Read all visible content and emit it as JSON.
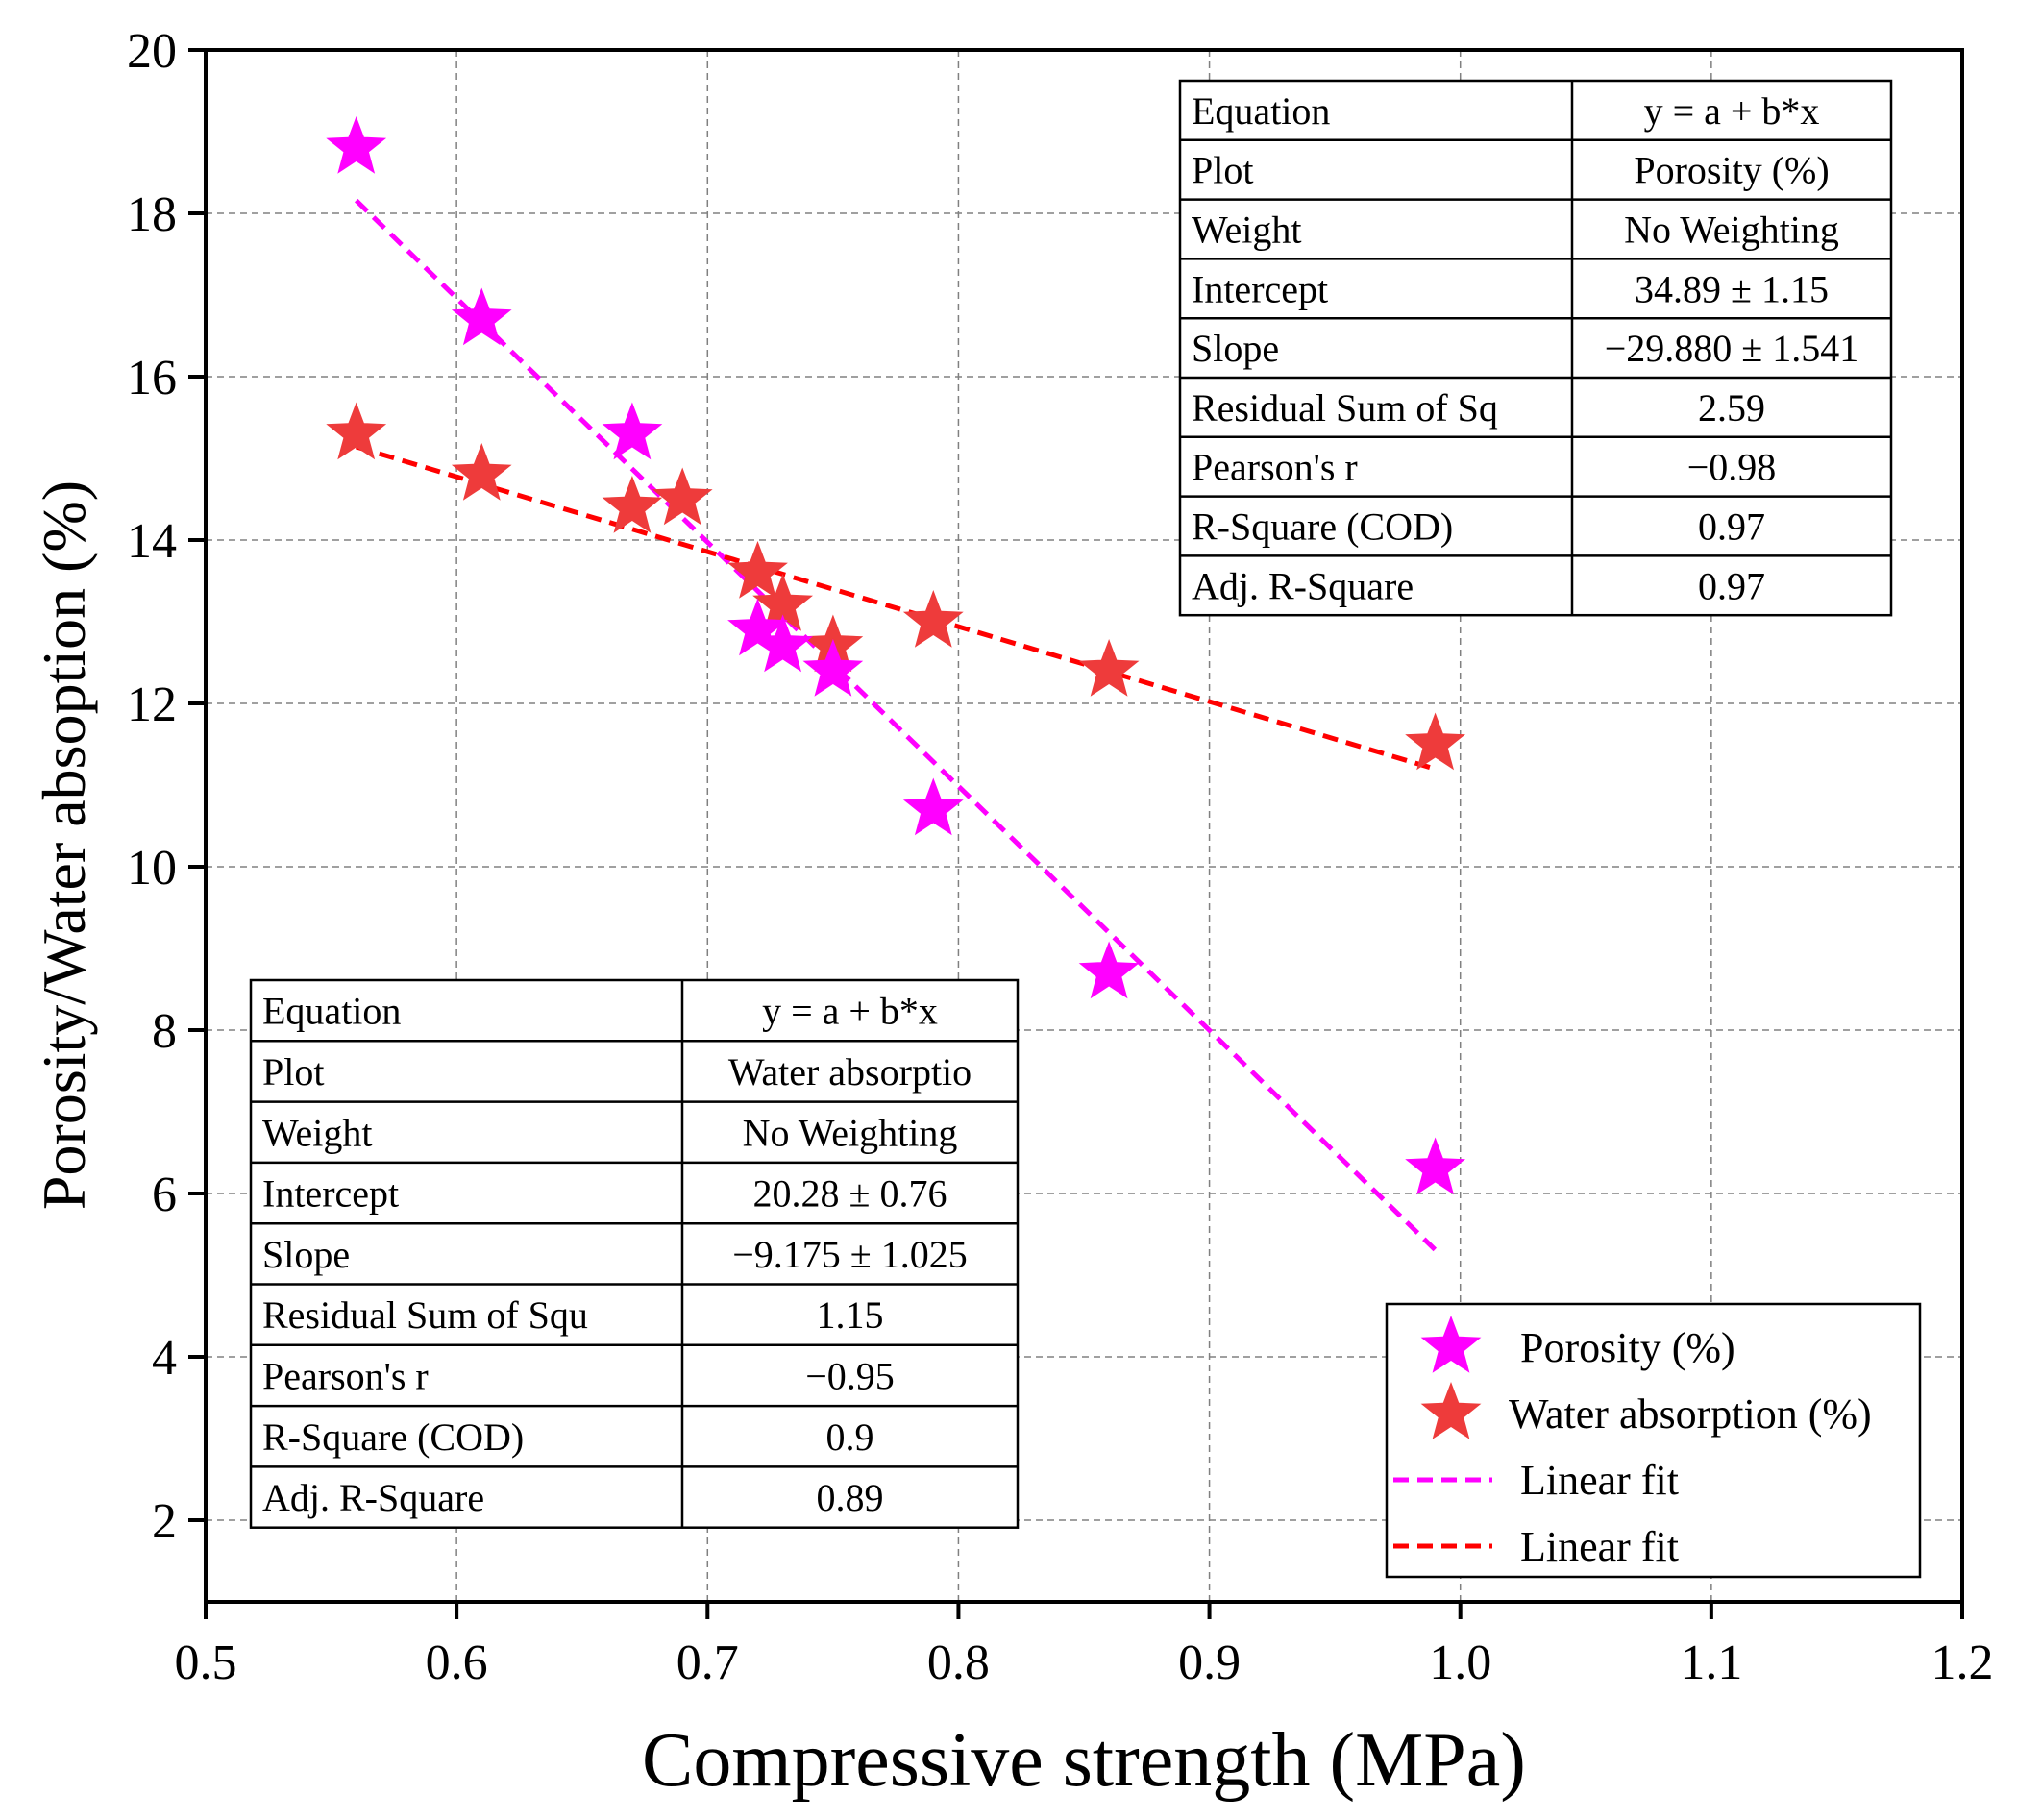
{
  "chart_data": {
    "type": "scatter",
    "title": "",
    "xlabel": "Compressive strength (MPa)",
    "ylabel": "Porosity/Water absoption (%)",
    "xlim": [
      0.5,
      1.2
    ],
    "ylim": [
      1,
      20
    ],
    "xticks": [
      0.5,
      0.6,
      0.7,
      0.8,
      0.9,
      1.0,
      1.1,
      1.2
    ],
    "xtick_labels": [
      "0.5",
      "0.6",
      "0.7",
      "0.8",
      "0.9",
      "1.0",
      "1.1",
      "1.2"
    ],
    "yticks": [
      2,
      4,
      6,
      8,
      10,
      12,
      14,
      16,
      18,
      20
    ],
    "ytick_labels": [
      "2",
      "4",
      "6",
      "8",
      "10",
      "12",
      "14",
      "16",
      "18",
      "20"
    ],
    "grid": true,
    "series": [
      {
        "name": "Porosity (%)",
        "color": "#ff00ff",
        "marker": "star",
        "x": [
          0.56,
          0.61,
          0.67,
          0.72,
          0.73,
          0.75,
          0.79,
          0.86,
          0.99
        ],
        "y": [
          18.8,
          16.7,
          15.3,
          12.9,
          12.7,
          12.4,
          10.7,
          8.7,
          6.3
        ]
      },
      {
        "name": "Water absorption (%)",
        "color": "#ee3b3b",
        "marker": "star",
        "x": [
          0.56,
          0.61,
          0.67,
          0.69,
          0.72,
          0.73,
          0.75,
          0.79,
          0.86,
          0.99
        ],
        "y": [
          15.3,
          14.8,
          14.4,
          14.5,
          13.6,
          13.2,
          12.7,
          13.0,
          12.4,
          11.5
        ]
      }
    ],
    "fits": [
      {
        "name": "Linear fit",
        "color": "#ff00ff",
        "intercept": 34.89,
        "slope": -29.88,
        "x_range": [
          0.56,
          0.99
        ]
      },
      {
        "name": "Linear fit",
        "color": "#ff0000",
        "intercept": 20.28,
        "slope": -9.175,
        "x_range": [
          0.56,
          0.99
        ]
      }
    ],
    "legend": {
      "position": "bottom-right",
      "entries": [
        "Porosity (%)",
        "Water absorption (%)",
        "Linear fit",
        "Linear fit"
      ]
    },
    "tables": [
      {
        "position": "top-right",
        "rows": [
          [
            "Equation",
            "y = a + b*x"
          ],
          [
            "Plot",
            "Porosity (%)"
          ],
          [
            "Weight",
            "No Weighting"
          ],
          [
            "Intercept",
            "34.89 ± 1.15"
          ],
          [
            "Slope",
            "−29.880 ± 1.541"
          ],
          [
            "Residual Sum of Sq",
            "2.59"
          ],
          [
            "Pearson's r",
            "−0.98"
          ],
          [
            "R-Square (COD)",
            "0.97"
          ],
          [
            "Adj. R-Square",
            "0.97"
          ]
        ]
      },
      {
        "position": "bottom-left",
        "rows": [
          [
            "Equation",
            "y = a + b*x"
          ],
          [
            "Plot",
            "Water absorptio"
          ],
          [
            "Weight",
            "No Weighting"
          ],
          [
            "Intercept",
            "20.28 ± 0.76"
          ],
          [
            "Slope",
            "−9.175 ± 1.025"
          ],
          [
            "Residual Sum of Squ",
            "1.15"
          ],
          [
            "Pearson's r",
            "−0.95"
          ],
          [
            "R-Square (COD)",
            "0.9"
          ],
          [
            "Adj. R-Square",
            "0.89"
          ]
        ]
      }
    ]
  }
}
